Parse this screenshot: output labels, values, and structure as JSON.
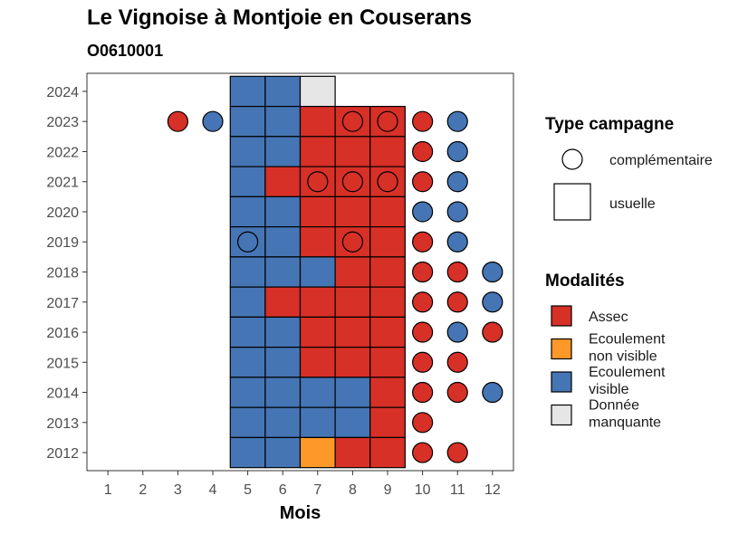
{
  "title": "Le Vignoise à Montjoie en Couserans",
  "subtitle": "O0610001",
  "colors": {
    "Assec": "#d73027",
    "Ecoulement non visible": "#fe9929",
    "Ecoulement visible": "#4575b4",
    "Donnée manquante": "#e6e6e6"
  },
  "chart_data": {
    "type": "heatmap",
    "xlabel": "Mois",
    "ylabel": "",
    "x_ticks": [
      "1",
      "2",
      "3",
      "4",
      "5",
      "6",
      "7",
      "8",
      "9",
      "10",
      "11",
      "12"
    ],
    "y_ticks": [
      "2012",
      "2013",
      "2014",
      "2015",
      "2016",
      "2017",
      "2018",
      "2019",
      "2020",
      "2021",
      "2022",
      "2023",
      "2024"
    ],
    "grid": false,
    "legend_position": "right",
    "legend_type": {
      "title": "Type campagne",
      "items": [
        {
          "label": "complémentaire",
          "shape": "circle"
        },
        {
          "label": "usuelle",
          "shape": "square"
        }
      ]
    },
    "legend_modalites": {
      "title": "Modalités",
      "items": [
        {
          "label_lines": [
            "Assec"
          ],
          "key": "Assec"
        },
        {
          "label_lines": [
            "Ecoulement",
            "non visible"
          ],
          "key": "Ecoulement non visible"
        },
        {
          "label_lines": [
            "Ecoulement",
            "visible"
          ],
          "key": "Ecoulement visible"
        },
        {
          "label_lines": [
            "Donnée",
            "manquante"
          ],
          "key": "Donnée manquante"
        }
      ]
    },
    "usuelle": [
      {
        "year": 2024,
        "month": 5,
        "value": "Ecoulement visible"
      },
      {
        "year": 2024,
        "month": 6,
        "value": "Ecoulement visible"
      },
      {
        "year": 2024,
        "month": 7,
        "value": "Donnée manquante"
      },
      {
        "year": 2023,
        "month": 5,
        "value": "Ecoulement visible"
      },
      {
        "year": 2023,
        "month": 6,
        "value": "Ecoulement visible"
      },
      {
        "year": 2023,
        "month": 7,
        "value": "Assec"
      },
      {
        "year": 2023,
        "month": 8,
        "value": "Assec"
      },
      {
        "year": 2023,
        "month": 9,
        "value": "Assec"
      },
      {
        "year": 2022,
        "month": 5,
        "value": "Ecoulement visible"
      },
      {
        "year": 2022,
        "month": 6,
        "value": "Ecoulement visible"
      },
      {
        "year": 2022,
        "month": 7,
        "value": "Assec"
      },
      {
        "year": 2022,
        "month": 8,
        "value": "Assec"
      },
      {
        "year": 2022,
        "month": 9,
        "value": "Assec"
      },
      {
        "year": 2021,
        "month": 5,
        "value": "Ecoulement visible"
      },
      {
        "year": 2021,
        "month": 6,
        "value": "Assec"
      },
      {
        "year": 2021,
        "month": 7,
        "value": "Assec"
      },
      {
        "year": 2021,
        "month": 8,
        "value": "Assec"
      },
      {
        "year": 2021,
        "month": 9,
        "value": "Assec"
      },
      {
        "year": 2020,
        "month": 5,
        "value": "Ecoulement visible"
      },
      {
        "year": 2020,
        "month": 6,
        "value": "Ecoulement visible"
      },
      {
        "year": 2020,
        "month": 7,
        "value": "Assec"
      },
      {
        "year": 2020,
        "month": 8,
        "value": "Assec"
      },
      {
        "year": 2020,
        "month": 9,
        "value": "Assec"
      },
      {
        "year": 2019,
        "month": 5,
        "value": "Ecoulement visible"
      },
      {
        "year": 2019,
        "month": 6,
        "value": "Ecoulement visible"
      },
      {
        "year": 2019,
        "month": 7,
        "value": "Assec"
      },
      {
        "year": 2019,
        "month": 8,
        "value": "Assec"
      },
      {
        "year": 2019,
        "month": 9,
        "value": "Assec"
      },
      {
        "year": 2018,
        "month": 5,
        "value": "Ecoulement visible"
      },
      {
        "year": 2018,
        "month": 6,
        "value": "Ecoulement visible"
      },
      {
        "year": 2018,
        "month": 7,
        "value": "Ecoulement visible"
      },
      {
        "year": 2018,
        "month": 8,
        "value": "Assec"
      },
      {
        "year": 2018,
        "month": 9,
        "value": "Assec"
      },
      {
        "year": 2017,
        "month": 5,
        "value": "Ecoulement visible"
      },
      {
        "year": 2017,
        "month": 6,
        "value": "Assec"
      },
      {
        "year": 2017,
        "month": 7,
        "value": "Assec"
      },
      {
        "year": 2017,
        "month": 8,
        "value": "Assec"
      },
      {
        "year": 2017,
        "month": 9,
        "value": "Assec"
      },
      {
        "year": 2016,
        "month": 5,
        "value": "Ecoulement visible"
      },
      {
        "year": 2016,
        "month": 6,
        "value": "Ecoulement visible"
      },
      {
        "year": 2016,
        "month": 7,
        "value": "Assec"
      },
      {
        "year": 2016,
        "month": 8,
        "value": "Assec"
      },
      {
        "year": 2016,
        "month": 9,
        "value": "Assec"
      },
      {
        "year": 2015,
        "month": 5,
        "value": "Ecoulement visible"
      },
      {
        "year": 2015,
        "month": 6,
        "value": "Ecoulement visible"
      },
      {
        "year": 2015,
        "month": 7,
        "value": "Assec"
      },
      {
        "year": 2015,
        "month": 8,
        "value": "Assec"
      },
      {
        "year": 2015,
        "month": 9,
        "value": "Assec"
      },
      {
        "year": 2014,
        "month": 5,
        "value": "Ecoulement visible"
      },
      {
        "year": 2014,
        "month": 6,
        "value": "Ecoulement visible"
      },
      {
        "year": 2014,
        "month": 7,
        "value": "Ecoulement visible"
      },
      {
        "year": 2014,
        "month": 8,
        "value": "Ecoulement visible"
      },
      {
        "year": 2014,
        "month": 9,
        "value": "Assec"
      },
      {
        "year": 2013,
        "month": 5,
        "value": "Ecoulement visible"
      },
      {
        "year": 2013,
        "month": 6,
        "value": "Ecoulement visible"
      },
      {
        "year": 2013,
        "month": 7,
        "value": "Ecoulement visible"
      },
      {
        "year": 2013,
        "month": 8,
        "value": "Ecoulement visible"
      },
      {
        "year": 2013,
        "month": 9,
        "value": "Assec"
      },
      {
        "year": 2012,
        "month": 5,
        "value": "Ecoulement visible"
      },
      {
        "year": 2012,
        "month": 6,
        "value": "Ecoulement visible"
      },
      {
        "year": 2012,
        "month": 7,
        "value": "Ecoulement non visible"
      },
      {
        "year": 2012,
        "month": 8,
        "value": "Assec"
      },
      {
        "year": 2012,
        "month": 9,
        "value": "Assec"
      }
    ],
    "complementaire": [
      {
        "year": 2023,
        "month": 3,
        "value": "Assec"
      },
      {
        "year": 2023,
        "month": 4,
        "value": "Ecoulement visible"
      },
      {
        "year": 2023,
        "month": 8,
        "value": "Assec"
      },
      {
        "year": 2023,
        "month": 9,
        "value": "Assec"
      },
      {
        "year": 2023,
        "month": 10,
        "value": "Assec"
      },
      {
        "year": 2023,
        "month": 11,
        "value": "Ecoulement visible"
      },
      {
        "year": 2022,
        "month": 10,
        "value": "Assec"
      },
      {
        "year": 2022,
        "month": 11,
        "value": "Ecoulement visible"
      },
      {
        "year": 2021,
        "month": 7,
        "value": "Assec"
      },
      {
        "year": 2021,
        "month": 8,
        "value": "Assec"
      },
      {
        "year": 2021,
        "month": 9,
        "value": "Assec"
      },
      {
        "year": 2021,
        "month": 10,
        "value": "Assec"
      },
      {
        "year": 2021,
        "month": 11,
        "value": "Ecoulement visible"
      },
      {
        "year": 2020,
        "month": 10,
        "value": "Ecoulement visible"
      },
      {
        "year": 2020,
        "month": 11,
        "value": "Ecoulement visible"
      },
      {
        "year": 2019,
        "month": 5,
        "value": "Ecoulement visible"
      },
      {
        "year": 2019,
        "month": 8,
        "value": "Assec"
      },
      {
        "year": 2019,
        "month": 10,
        "value": "Assec"
      },
      {
        "year": 2019,
        "month": 11,
        "value": "Ecoulement visible"
      },
      {
        "year": 2018,
        "month": 10,
        "value": "Assec"
      },
      {
        "year": 2018,
        "month": 11,
        "value": "Assec"
      },
      {
        "year": 2018,
        "month": 12,
        "value": "Ecoulement visible"
      },
      {
        "year": 2017,
        "month": 10,
        "value": "Assec"
      },
      {
        "year": 2017,
        "month": 11,
        "value": "Assec"
      },
      {
        "year": 2017,
        "month": 12,
        "value": "Ecoulement visible"
      },
      {
        "year": 2016,
        "month": 10,
        "value": "Assec"
      },
      {
        "year": 2016,
        "month": 11,
        "value": "Ecoulement visible"
      },
      {
        "year": 2016,
        "month": 12,
        "value": "Assec"
      },
      {
        "year": 2015,
        "month": 10,
        "value": "Assec"
      },
      {
        "year": 2015,
        "month": 11,
        "value": "Assec"
      },
      {
        "year": 2014,
        "month": 10,
        "value": "Assec"
      },
      {
        "year": 2014,
        "month": 11,
        "value": "Assec"
      },
      {
        "year": 2014,
        "month": 12,
        "value": "Ecoulement visible"
      },
      {
        "year": 2013,
        "month": 10,
        "value": "Assec"
      },
      {
        "year": 2012,
        "month": 10,
        "value": "Assec"
      },
      {
        "year": 2012,
        "month": 11,
        "value": "Assec"
      }
    ]
  }
}
